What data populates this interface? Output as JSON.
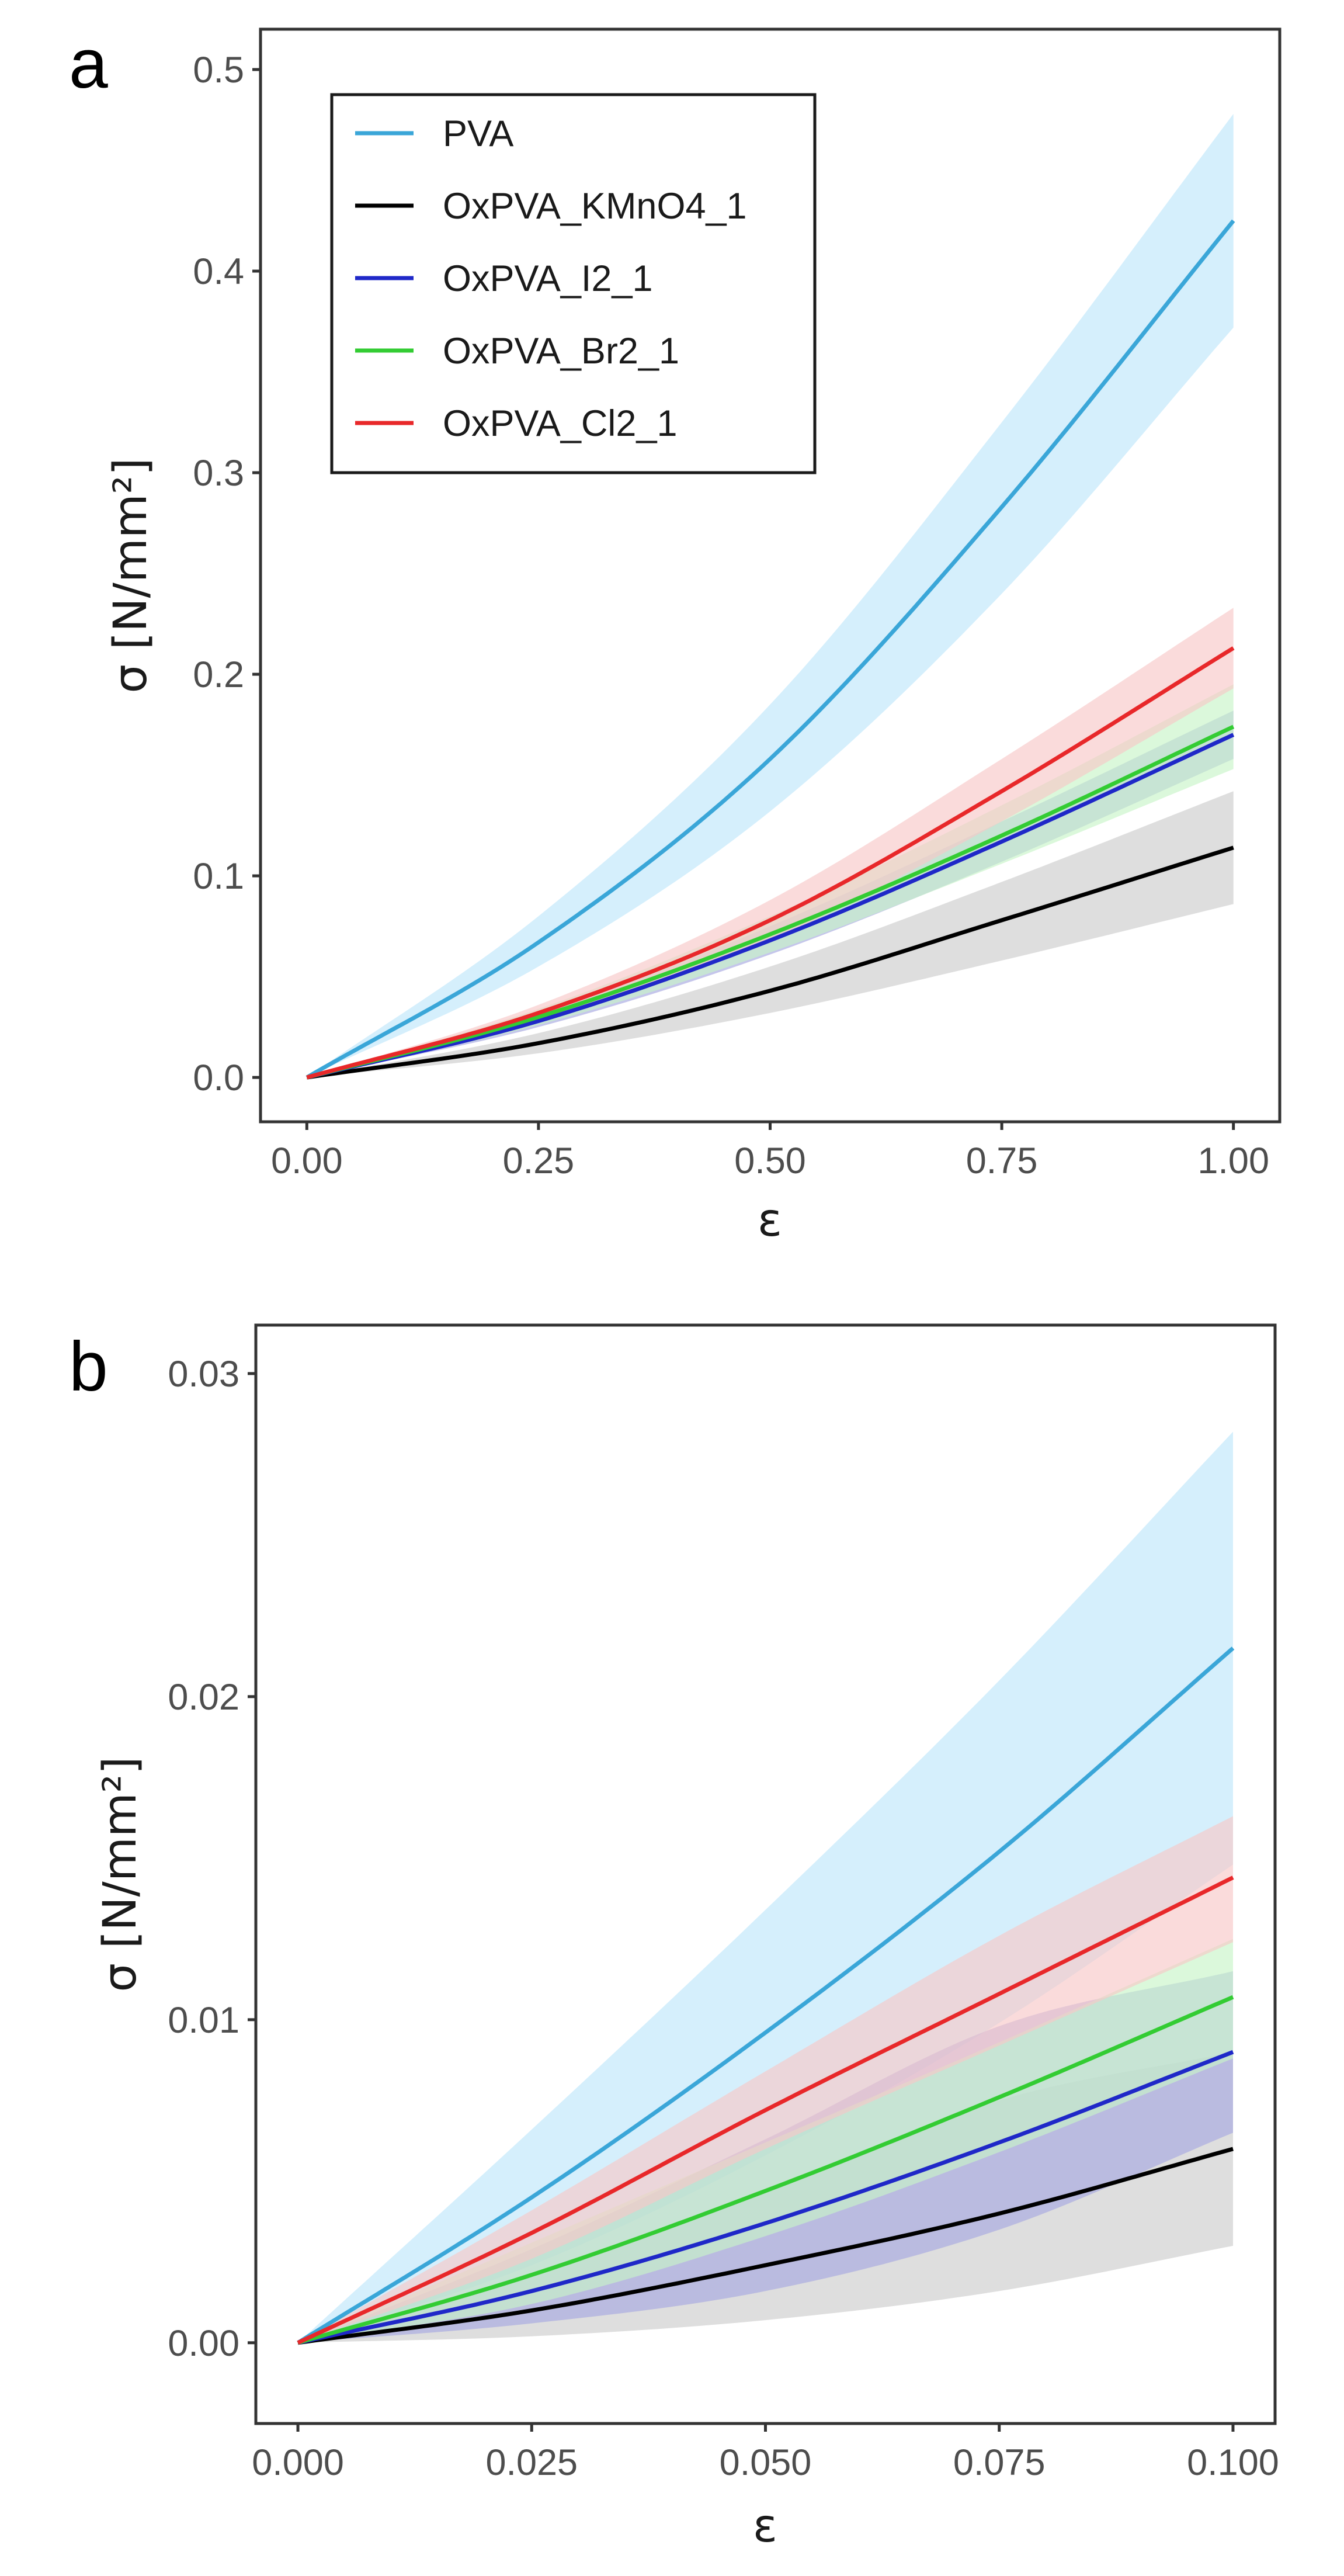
{
  "chart_data": [
    {
      "panel_label": "a",
      "type": "line",
      "xlabel": "ε",
      "ylabel": "σ [N/mm²]",
      "xlim": [
        -0.05,
        1.05
      ],
      "ylim": [
        -0.022,
        0.52
      ],
      "x_ticks": [
        0,
        0.25,
        0.5,
        0.75,
        1.0
      ],
      "x_tick_labels": [
        "0.00",
        "0.25",
        "0.50",
        "0.75",
        "1.00"
      ],
      "y_ticks": [
        0,
        0.1,
        0.2,
        0.3,
        0.4,
        0.5
      ],
      "y_tick_labels": [
        "0.0",
        "0.1",
        "0.2",
        "0.3",
        "0.4",
        "0.5"
      ],
      "x": [
        0,
        0.25,
        0.5,
        0.75,
        1.0
      ],
      "legend_position": "top-left",
      "series": [
        {
          "name": "PVA",
          "color": "#3aa6d8",
          "fill": "#bfe6fa",
          "values": [
            0,
            0.067,
            0.158,
            0.283,
            0.425
          ],
          "upper": [
            0,
            0.08,
            0.185,
            0.325,
            0.478
          ],
          "lower": [
            0,
            0.055,
            0.132,
            0.24,
            0.372
          ]
        },
        {
          "name": "OxPVA_KMnO4_1",
          "color": "#000000",
          "fill": "#cccccc",
          "values": [
            0,
            0.017,
            0.043,
            0.078,
            0.114
          ],
          "upper": [
            0,
            0.022,
            0.055,
            0.097,
            0.142
          ],
          "lower": [
            0,
            0.012,
            0.032,
            0.058,
            0.086
          ]
        },
        {
          "name": "OxPVA_I2_1",
          "color": "#1f28c8",
          "fill": "#a6a8e0",
          "values": [
            0,
            0.028,
            0.068,
            0.117,
            0.17
          ],
          "upper": [
            0,
            0.031,
            0.075,
            0.127,
            0.182
          ],
          "lower": [
            0,
            0.025,
            0.061,
            0.107,
            0.158
          ]
        },
        {
          "name": "OxPVA_Br2_1",
          "color": "#33cc33",
          "fill": "#c8f5c8",
          "values": [
            0,
            0.03,
            0.071,
            0.12,
            0.174
          ],
          "upper": [
            0,
            0.034,
            0.08,
            0.135,
            0.195
          ],
          "lower": [
            0,
            0.026,
            0.062,
            0.106,
            0.153
          ]
        },
        {
          "name": "OxPVA_Cl2_1",
          "color": "#e8282a",
          "fill": "#f8c8c8",
          "values": [
            0,
            0.032,
            0.078,
            0.142,
            0.213
          ],
          "upper": [
            0,
            0.036,
            0.088,
            0.158,
            0.233
          ],
          "lower": [
            0,
            0.028,
            0.068,
            0.127,
            0.193
          ]
        }
      ]
    },
    {
      "panel_label": "b",
      "type": "line",
      "xlabel": "ε",
      "ylabel": "σ [N/mm²]",
      "xlim": [
        -0.0045,
        0.1045
      ],
      "ylim": [
        -0.0025,
        0.0315
      ],
      "x_ticks": [
        0,
        0.025,
        0.05,
        0.075,
        0.1
      ],
      "x_tick_labels": [
        "0.000",
        "0.025",
        "0.050",
        "0.075",
        "0.100"
      ],
      "y_ticks": [
        0,
        0.01,
        0.02,
        0.03
      ],
      "y_tick_labels": [
        "0.00",
        "0.01",
        "0.02",
        "0.03"
      ],
      "x": [
        0,
        0.025,
        0.05,
        0.075,
        0.1
      ],
      "series": [
        {
          "name": "PVA",
          "color": "#3aa6d8",
          "fill": "#bfe6fa",
          "values": [
            0,
            0.0045,
            0.0096,
            0.0152,
            0.0215
          ],
          "upper": [
            0,
            0.0066,
            0.0134,
            0.0205,
            0.0282
          ],
          "lower": [
            0,
            0.0024,
            0.0058,
            0.0099,
            0.0148
          ]
        },
        {
          "name": "OxPVA_KMnO4_1",
          "color": "#000000",
          "fill": "#cccccc",
          "values": [
            0,
            0.001,
            0.0024,
            0.004,
            0.006
          ],
          "upper": [
            0,
            0.0021,
            0.0047,
            0.0075,
            0.009
          ],
          "lower": [
            0,
            0.0002,
            0.0007,
            0.0016,
            0.003
          ]
        },
        {
          "name": "OxPVA_I2_1",
          "color": "#1f28c8",
          "fill": "#a6a8e0",
          "values": [
            0,
            0.0016,
            0.0037,
            0.0062,
            0.009
          ],
          "upper": [
            0,
            0.0029,
            0.0063,
            0.0098,
            0.0115
          ],
          "lower": [
            0,
            0.0006,
            0.0016,
            0.0035,
            0.0065
          ]
        },
        {
          "name": "OxPVA_Br2_1",
          "color": "#33cc33",
          "fill": "#c8f5c8",
          "values": [
            0,
            0.0021,
            0.0047,
            0.0076,
            0.0107
          ],
          "upper": [
            0,
            0.0031,
            0.0062,
            0.0093,
            0.0125
          ],
          "lower": [
            0,
            0.0012,
            0.0033,
            0.0059,
            0.0088
          ]
        },
        {
          "name": "OxPVA_Cl2_1",
          "color": "#e8282a",
          "fill": "#f8c8c8",
          "values": [
            0,
            0.0034,
            0.0072,
            0.0108,
            0.0144
          ],
          "upper": [
            0,
            0.0041,
            0.0084,
            0.0126,
            0.0163
          ],
          "lower": [
            0,
            0.0026,
            0.006,
            0.0092,
            0.0124
          ]
        }
      ]
    }
  ]
}
